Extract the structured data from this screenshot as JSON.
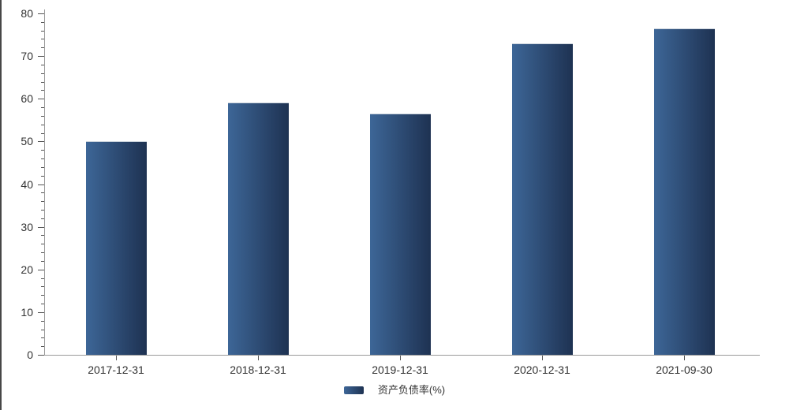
{
  "page": {
    "background": "#ffffff"
  },
  "window": {
    "left_edge_color": "#474747"
  },
  "colors": {
    "bar_gradient_start": "#3d6697",
    "bar_gradient_end": "#1e3252",
    "axis_line": "#9a9a9a",
    "tick_mark": "#555555",
    "label_text": "#333333"
  },
  "chart_data": {
    "type": "bar",
    "title": "",
    "series_name": "资产负债率(%)",
    "categories": [
      "2017-12-31",
      "2018-12-31",
      "2019-12-31",
      "2020-12-31",
      "2021-09-30"
    ],
    "values": [
      50.1,
      59.2,
      56.6,
      72.9,
      76.4
    ],
    "xlabel": "",
    "ylabel": "",
    "ylim": [
      0,
      80
    ],
    "y_ticks": [
      0,
      10,
      20,
      30,
      40,
      50,
      60,
      70,
      80
    ],
    "minor_tick_interval": 2,
    "grid": false,
    "legend_position": "bottom-center"
  }
}
